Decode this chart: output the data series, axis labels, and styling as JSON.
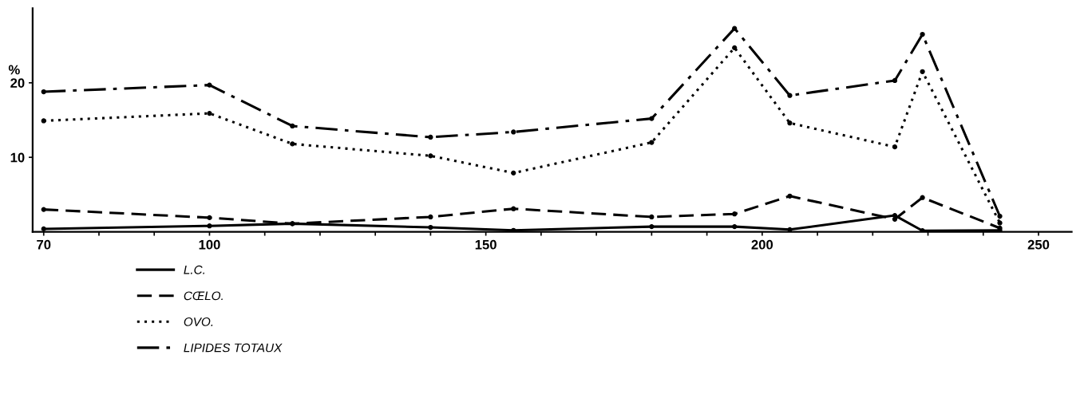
{
  "chart_data": {
    "type": "line",
    "ylabel": "%",
    "x": [
      70,
      100,
      115,
      140,
      155,
      180,
      195,
      205,
      224,
      229,
      243
    ],
    "series": [
      {
        "name": "L.C.",
        "color": "#000000",
        "line_style": "solid",
        "values": [
          0.4,
          0.8,
          1.1,
          0.6,
          0.2,
          0.7,
          0.7,
          0.3,
          2.2,
          0.15,
          0.2
        ]
      },
      {
        "name": "CŒLO.",
        "color": "#000000",
        "line_style": "dashed",
        "values": [
          3.0,
          1.9,
          1.1,
          2.0,
          3.1,
          2.0,
          2.4,
          4.8,
          1.7,
          4.6,
          0.5
        ]
      },
      {
        "name": "OVO.",
        "color": "#000000",
        "line_style": "dotted",
        "values": [
          14.9,
          15.9,
          11.8,
          10.2,
          7.9,
          12.0,
          24.7,
          14.6,
          11.4,
          21.5,
          1.2
        ]
      },
      {
        "name": "LIPIDES TOTAUX",
        "color": "#000000",
        "line_style": "dashdot",
        "values": [
          18.8,
          19.7,
          14.2,
          12.7,
          13.4,
          15.2,
          27.3,
          18.3,
          20.3,
          26.5,
          2.1
        ]
      }
    ],
    "xlim": [
      68,
      256
    ],
    "ylim": [
      0,
      30
    ],
    "xticks": [
      70,
      {
        "value": 80,
        "label": null
      },
      {
        "value": 90,
        "label": null
      },
      100,
      {
        "value": 110,
        "label": null
      },
      {
        "value": 120,
        "label": null
      },
      {
        "value": 130,
        "label": null
      },
      {
        "value": 140,
        "label": null
      },
      150,
      {
        "value": 160,
        "label": null
      },
      {
        "value": 170,
        "label": null
      },
      {
        "value": 180,
        "label": null
      },
      {
        "value": 190,
        "label": null
      },
      200,
      {
        "value": 210,
        "label": null
      },
      {
        "value": 220,
        "label": null
      },
      {
        "value": 230,
        "label": null
      },
      {
        "value": 240,
        "label": null
      },
      250
    ],
    "yticks": [
      10,
      20
    ],
    "marker": "circle",
    "grid": false,
    "legend": "bottom left"
  }
}
